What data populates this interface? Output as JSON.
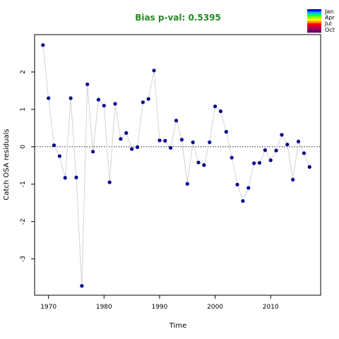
{
  "chart_data": {
    "type": "scatter",
    "title": "Bias p-val: 0.5395",
    "xlabel": "Time",
    "ylabel": "Catch OSA residuals",
    "xlim": [
      1967.5,
      2019
    ],
    "ylim": [
      -3.97,
      3.0
    ],
    "xticks": [
      1970,
      1980,
      1990,
      2000,
      2010
    ],
    "yticks": [
      -3,
      -2,
      -1,
      0,
      1,
      2
    ],
    "reference_line": 0,
    "grid": false,
    "line_color": "#d3d3d3",
    "point_color": "#00008B",
    "title_color": "#228B22",
    "series": [
      {
        "x": [
          1969,
          1970,
          1971,
          1972,
          1973,
          1974,
          1975,
          1976,
          1977,
          1978,
          1979,
          1980,
          1981,
          1982,
          1983,
          1984,
          1985,
          1986,
          1987,
          1988,
          1989,
          1990,
          1991,
          1992,
          1993,
          1994,
          1995,
          1996,
          1997,
          1998,
          1999,
          2000,
          2001,
          2002,
          2003,
          2004,
          2005,
          2006,
          2007,
          2008,
          2009,
          2010,
          2011,
          2012,
          2013,
          2014,
          2015,
          2016,
          2017
        ],
        "y": [
          2.72,
          1.3,
          0.04,
          -0.25,
          -0.83,
          1.3,
          -0.82,
          -3.72,
          1.67,
          -0.13,
          1.26,
          1.1,
          -0.95,
          1.15,
          0.21,
          0.37,
          -0.06,
          -0.01,
          1.19,
          1.28,
          2.04,
          0.17,
          0.16,
          -0.03,
          0.7,
          0.19,
          -0.99,
          0.12,
          -0.42,
          -0.49,
          0.12,
          1.08,
          0.95,
          0.4,
          -0.29,
          -1.01,
          -1.45,
          -1.1,
          -0.44,
          -0.43,
          -0.09,
          -0.36,
          -0.1,
          0.32,
          0.06,
          -0.88,
          0.14,
          -0.17,
          -0.54
        ]
      }
    ],
    "legend": {
      "position": "top-right",
      "labels": [
        "Jan",
        "Apr",
        "Jul",
        "Oct"
      ],
      "colors": [
        "#0000FF",
        "#00AAFF",
        "#00FF66",
        "#88FF00",
        "#FFFF00",
        "#FF9900",
        "#FF0000",
        "#CC0033",
        "#990066",
        "#660066"
      ]
    }
  }
}
